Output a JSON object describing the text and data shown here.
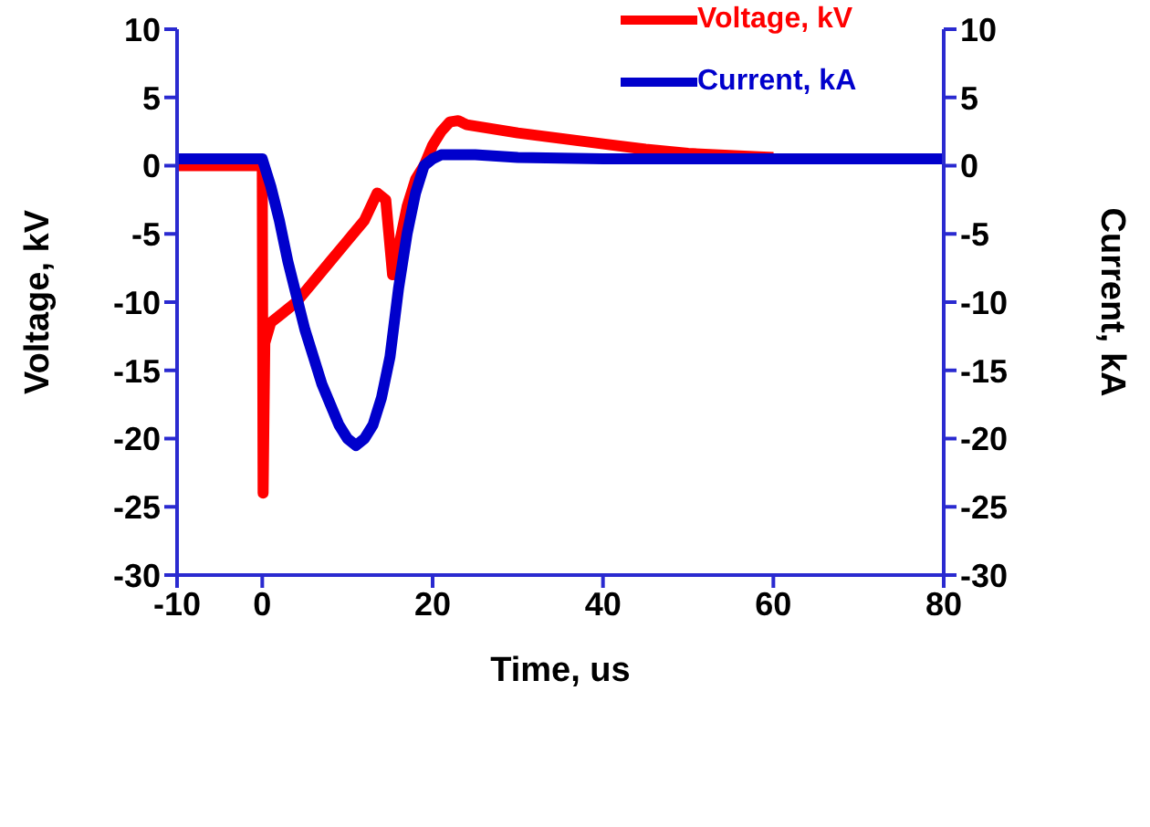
{
  "chart_data": {
    "type": "line",
    "xlabel": "Time, us",
    "ylabel": "Voltage, kV",
    "y2label": "Current, kA",
    "xlim": [
      -10,
      80
    ],
    "xticks": [
      -10,
      0,
      20,
      40,
      60,
      80
    ],
    "ylim": [
      -30,
      10
    ],
    "yticks": [
      -30,
      -25,
      -20,
      -15,
      -10,
      -5,
      0,
      5,
      10
    ],
    "y2lim": [
      -30,
      10
    ],
    "y2ticks": [
      -30,
      -25,
      -20,
      -15,
      -10,
      -5,
      0,
      5,
      10
    ],
    "legend": "top right",
    "marker": "none",
    "line_style": "solid",
    "series": [
      {
        "name": "Voltage, kV",
        "color": "#ff0000",
        "x": [
          -10,
          -5,
          0,
          0.1,
          0.3,
          1,
          2,
          4,
          6,
          8,
          10,
          12,
          13.5,
          14.5,
          15.3,
          16,
          17,
          18,
          19,
          20,
          21,
          22,
          23,
          24,
          26,
          28,
          30,
          35,
          40,
          45,
          50,
          60
        ],
        "values": [
          0,
          0,
          0,
          -24,
          -13,
          -11.5,
          -11,
          -10,
          -8.5,
          -7,
          -5.5,
          -4,
          -2,
          -2.5,
          -8,
          -6,
          -3,
          -1,
          0,
          1.5,
          2.5,
          3.2,
          3.3,
          3,
          2.8,
          2.6,
          2.4,
          2,
          1.6,
          1.2,
          0.9,
          0.6
        ]
      },
      {
        "name": "Current, kA",
        "color": "#0000cc",
        "axis": "y2",
        "x": [
          -10,
          -5,
          0,
          1,
          2,
          3,
          4,
          5,
          6,
          7,
          8,
          9,
          10,
          11,
          12,
          13,
          14,
          15,
          16,
          17,
          18,
          19,
          20,
          21,
          25,
          30,
          40,
          50,
          60,
          70,
          80
        ],
        "values": [
          0.5,
          0.5,
          0.5,
          -1.5,
          -4,
          -7,
          -9.5,
          -12,
          -14,
          -16,
          -17.5,
          -19,
          -20,
          -20.5,
          -20,
          -19,
          -17,
          -14,
          -9,
          -5,
          -2,
          0,
          0.5,
          0.8,
          0.8,
          0.6,
          0.5,
          0.5,
          0.5,
          0.5,
          0.5
        ]
      }
    ]
  }
}
